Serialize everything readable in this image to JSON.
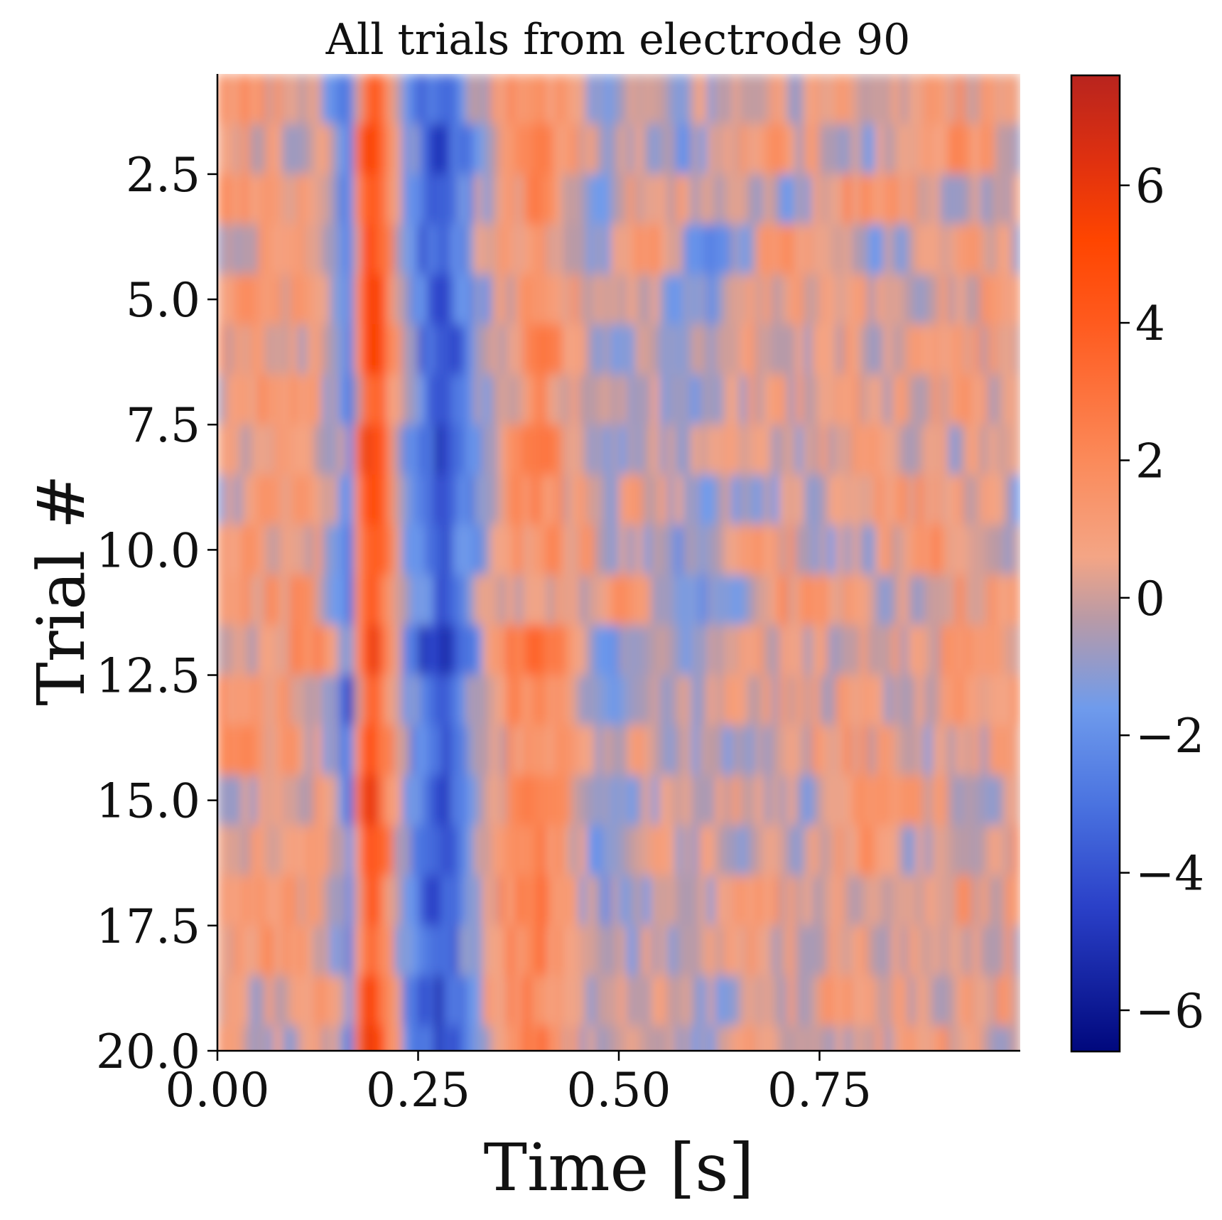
{
  "chart_data": {
    "type": "heatmap",
    "title": "All trials from electrode 90",
    "xlabel": "Time [s]",
    "ylabel": "Trial #",
    "xlim": [
      0.0,
      1.0
    ],
    "ylim": [
      0.5,
      20.0
    ],
    "x_ticks": [
      "0.00",
      "0.25",
      "0.50",
      "0.75"
    ],
    "x_tick_values": [
      0.0,
      0.25,
      0.5,
      0.75
    ],
    "y_ticks": [
      "2.5",
      "5.0",
      "7.5",
      "10.0",
      "12.5",
      "15.0",
      "17.5",
      "20.0"
    ],
    "y_tick_values": [
      2.5,
      5.0,
      7.5,
      10.0,
      12.5,
      15.0,
      17.5,
      20.0
    ],
    "y_inverted": true,
    "grid": false,
    "colorbar": {
      "range": [
        -6.6,
        7.6
      ],
      "ticks": [
        "6",
        "4",
        "2",
        "0",
        "−2",
        "−4",
        "−6"
      ],
      "tick_values": [
        6,
        4,
        2,
        0,
        -2,
        -4,
        -6
      ],
      "colors": [
        "#00087d",
        "#2a40c8",
        "#4a73e0",
        "#6f9bec",
        "#b99aa6",
        "#f4a585",
        "#fb8a5a",
        "#ff5a1e",
        "#ff4500",
        "#de3010",
        "#b8241e"
      ],
      "color_values": [
        -6.6,
        -4.5,
        -3.0,
        -1.6,
        -0.3,
        0.6,
        2.0,
        4.0,
        5.2,
        6.4,
        7.6
      ]
    },
    "rows": 20,
    "time_profile": [
      {
        "t": 0.0,
        "v": 0.3
      },
      {
        "t": 0.04,
        "v": 0.6
      },
      {
        "t": 0.08,
        "v": 0.9
      },
      {
        "t": 0.12,
        "v": 0.7
      },
      {
        "t": 0.15,
        "v": -0.5
      },
      {
        "t": 0.165,
        "v": -2.6
      },
      {
        "t": 0.18,
        "v": 3.5
      },
      {
        "t": 0.19,
        "v": 5.6
      },
      {
        "t": 0.21,
        "v": 2.8
      },
      {
        "t": 0.23,
        "v": -1.0
      },
      {
        "t": 0.255,
        "v": -3.0
      },
      {
        "t": 0.28,
        "v": -4.4
      },
      {
        "t": 0.305,
        "v": -2.4
      },
      {
        "t": 0.33,
        "v": -0.6
      },
      {
        "t": 0.36,
        "v": 1.0
      },
      {
        "t": 0.4,
        "v": 2.5
      },
      {
        "t": 0.44,
        "v": 0.6
      },
      {
        "t": 0.48,
        "v": -0.9
      },
      {
        "t": 0.53,
        "v": 0.2
      },
      {
        "t": 0.58,
        "v": -0.6
      },
      {
        "t": 0.63,
        "v": -0.4
      },
      {
        "t": 0.68,
        "v": 0.4
      },
      {
        "t": 0.73,
        "v": 0.1
      },
      {
        "t": 0.78,
        "v": 0.7
      },
      {
        "t": 0.83,
        "v": 0.3
      },
      {
        "t": 0.88,
        "v": 0.2
      },
      {
        "t": 0.93,
        "v": 0.6
      },
      {
        "t": 1.0,
        "v": 0.4
      }
    ]
  }
}
